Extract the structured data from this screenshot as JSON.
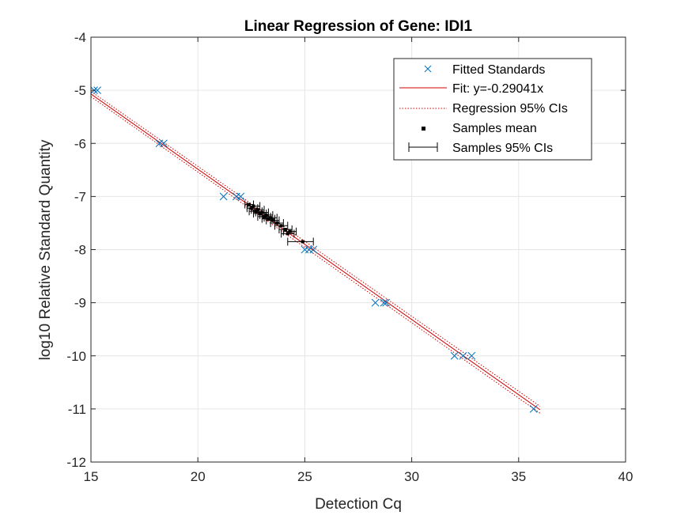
{
  "chart_data": {
    "type": "scatter",
    "title": "Linear Regression of Gene: IDI1",
    "xlabel": "Detection Cq",
    "ylabel": "log10 Relative Standard Quantity",
    "xlim": [
      15,
      40
    ],
    "ylim": [
      -12,
      -4
    ],
    "xticks": [
      "15",
      "20",
      "25",
      "30",
      "35",
      "40"
    ],
    "yticks": [
      "-4",
      "-5",
      "-6",
      "-7",
      "-8",
      "-9",
      "-10",
      "-11",
      "-12"
    ],
    "grid": true,
    "legend_position": "top-right",
    "legend": {
      "fitted": "Fitted Standards",
      "fit": "Fit: y=-0.29041x",
      "ci": "Regression 95% CIs",
      "mean": "Samples mean",
      "samples_ci": "Samples 95% CIs"
    },
    "colors": {
      "standards": "#0072BD",
      "fit": "#D00000",
      "ci": "#D00000",
      "samples": "#000000",
      "grid": "#E6E6E6",
      "axes": "#262626"
    },
    "fit_slope": -0.29041,
    "ci_band": {
      "upper": [
        [
          15,
          -5.02
        ],
        [
          36,
          -10.95
        ]
      ],
      "lower": [
        [
          15,
          -5.12
        ],
        [
          36,
          -11.08
        ]
      ]
    },
    "standards": [
      {
        "x": 15.15,
        "y": -5
      },
      {
        "x": 15.3,
        "y": -5
      },
      {
        "x": 18.2,
        "y": -6
      },
      {
        "x": 18.4,
        "y": -6
      },
      {
        "x": 21.2,
        "y": -7
      },
      {
        "x": 21.8,
        "y": -7
      },
      {
        "x": 22.0,
        "y": -7
      },
      {
        "x": 25.0,
        "y": -8
      },
      {
        "x": 25.2,
        "y": -8
      },
      {
        "x": 25.4,
        "y": -8
      },
      {
        "x": 28.3,
        "y": -9
      },
      {
        "x": 28.7,
        "y": -9
      },
      {
        "x": 28.8,
        "y": -9
      },
      {
        "x": 32.0,
        "y": -10
      },
      {
        "x": 32.4,
        "y": -10
      },
      {
        "x": 32.8,
        "y": -10
      },
      {
        "x": 35.7,
        "y": -11
      }
    ],
    "samples": [
      {
        "x": 22.4,
        "y": -7.15,
        "xlo": 22.2,
        "xhi": 22.6
      },
      {
        "x": 22.5,
        "y": -7.22,
        "xlo": 22.3,
        "xhi": 22.8
      },
      {
        "x": 22.6,
        "y": -7.18,
        "xlo": 22.3,
        "xhi": 22.9
      },
      {
        "x": 22.7,
        "y": -7.28,
        "xlo": 22.4,
        "xhi": 23.0
      },
      {
        "x": 22.8,
        "y": -7.25,
        "xlo": 22.5,
        "xhi": 23.1
      },
      {
        "x": 22.9,
        "y": -7.32,
        "xlo": 22.6,
        "xhi": 23.2
      },
      {
        "x": 23.0,
        "y": -7.3,
        "xlo": 22.7,
        "xhi": 23.3
      },
      {
        "x": 23.1,
        "y": -7.38,
        "xlo": 22.8,
        "xhi": 23.4
      },
      {
        "x": 23.2,
        "y": -7.35,
        "xlo": 22.9,
        "xhi": 23.5
      },
      {
        "x": 23.3,
        "y": -7.42,
        "xlo": 23.0,
        "xhi": 23.6
      },
      {
        "x": 23.4,
        "y": -7.4,
        "xlo": 23.1,
        "xhi": 23.7
      },
      {
        "x": 23.5,
        "y": -7.45,
        "xlo": 23.2,
        "xhi": 23.8
      },
      {
        "x": 23.7,
        "y": -7.5,
        "xlo": 23.4,
        "xhi": 24.0
      },
      {
        "x": 23.9,
        "y": -7.55,
        "xlo": 23.6,
        "xhi": 24.2
      },
      {
        "x": 24.1,
        "y": -7.62,
        "xlo": 23.8,
        "xhi": 24.4
      },
      {
        "x": 24.2,
        "y": -7.7,
        "xlo": 23.9,
        "xhi": 24.5
      },
      {
        "x": 24.3,
        "y": -7.66,
        "xlo": 24.0,
        "xhi": 24.6
      },
      {
        "x": 24.9,
        "y": -7.85,
        "xlo": 24.2,
        "xhi": 25.4
      }
    ]
  }
}
